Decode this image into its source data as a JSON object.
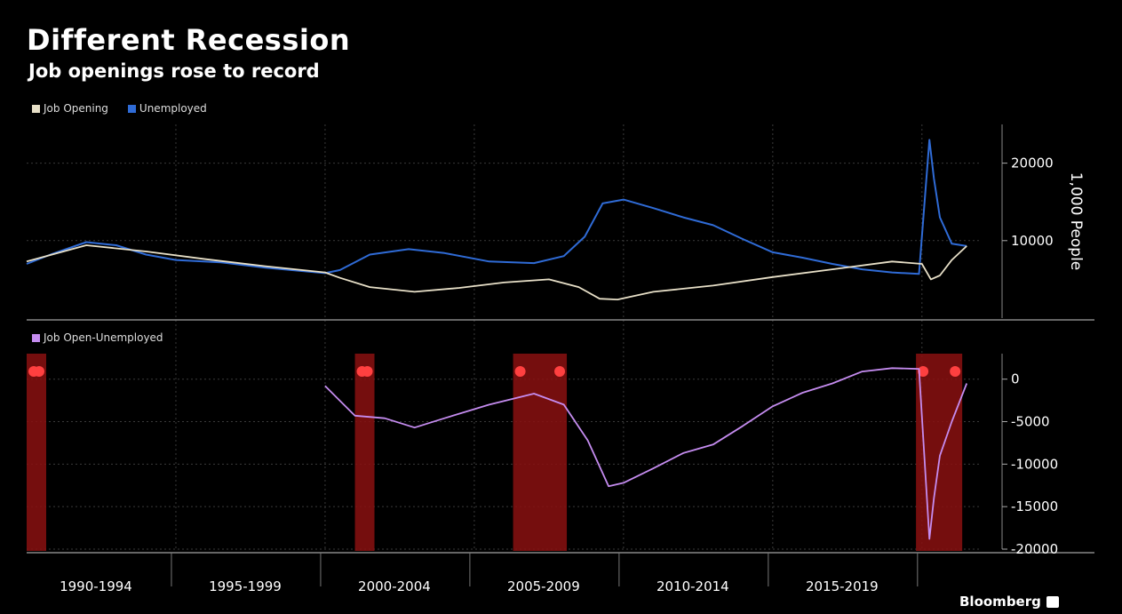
{
  "title": "Different Recession",
  "subtitle": "Job openings rose to record",
  "brand": "Bloomberg",
  "colors": {
    "job_opening": "#e8e0c8",
    "unemployed": "#2f6bd6",
    "diff": "#c58cf0",
    "recession": "#8a1010",
    "recession_marker": "#ff4040",
    "grid": "#3a3a3a"
  },
  "chart_data": [
    {
      "type": "line",
      "panel": "top",
      "ylabel": "1,000 People",
      "ylim": [
        0,
        25000
      ],
      "yticks": [
        10000,
        20000
      ],
      "legend_placement": "top-left",
      "series": [
        {
          "name": "Job Opening",
          "x": [
            1990.0,
            1992.0,
            1994.0,
            1996.0,
            1998.0,
            2000.0,
            2000.5,
            2001.5,
            2003.0,
            2004.5,
            2006.0,
            2007.5,
            2008.5,
            2009.2,
            2009.8,
            2011.0,
            2013.0,
            2015.0,
            2017.0,
            2019.0,
            2020.0,
            2020.3,
            2020.6,
            2021.0,
            2021.5
          ],
          "y": [
            7300,
            9400,
            8600,
            7600,
            6700,
            5900,
            5200,
            4000,
            3400,
            3900,
            4600,
            5000,
            4000,
            2500,
            2400,
            3400,
            4200,
            5300,
            6300,
            7300,
            7000,
            5000,
            5500,
            7500,
            9300
          ]
        },
        {
          "name": "Unemployed",
          "x": [
            1990.0,
            1990.8,
            1992.0,
            1993.0,
            1994.0,
            1995.0,
            1996.5,
            1998.0,
            2000.0,
            2000.5,
            2001.5,
            2002.8,
            2004.0,
            2005.5,
            2007.0,
            2008.0,
            2008.7,
            2009.3,
            2010.0,
            2011.0,
            2012.0,
            2013.0,
            2014.0,
            2015.0,
            2016.0,
            2017.0,
            2018.0,
            2019.0,
            2019.9,
            2020.25,
            2020.4,
            2020.6,
            2021.0,
            2021.5
          ],
          "y": [
            7000,
            8200,
            9800,
            9400,
            8200,
            7500,
            7200,
            6500,
            5800,
            6200,
            8200,
            8900,
            8400,
            7300,
            7100,
            8000,
            10500,
            14800,
            15300,
            14200,
            13000,
            12000,
            10200,
            8500,
            7800,
            7000,
            6300,
            5900,
            5700,
            23000,
            18000,
            13000,
            9600,
            9300
          ]
        }
      ]
    },
    {
      "type": "line",
      "panel": "bottom",
      "ylim": [
        -20000,
        3000
      ],
      "yticks": [
        0,
        -5000,
        -10000,
        -15000,
        -20000
      ],
      "legend_placement": "top-left",
      "series": [
        {
          "name": "Job Open-Unemployed",
          "x": [
            2000.0,
            2001.0,
            2002.0,
            2003.0,
            2004.0,
            2005.5,
            2007.0,
            2008.0,
            2008.8,
            2009.5,
            2010.0,
            2011.0,
            2012.0,
            2013.0,
            2014.0,
            2015.0,
            2016.0,
            2017.0,
            2018.0,
            2019.0,
            2019.9,
            2020.25,
            2020.4,
            2020.6,
            2021.0,
            2021.5
          ],
          "y": [
            -800,
            -4300,
            -4600,
            -5700,
            -4600,
            -3000,
            -1700,
            -3000,
            -7200,
            -12600,
            -12200,
            -10500,
            -8700,
            -7700,
            -5500,
            -3200,
            -1600,
            -500,
            900,
            1300,
            1200,
            -18800,
            -14000,
            -9000,
            -5000,
            -500
          ]
        }
      ],
      "recessions": [
        {
          "start": 1990.0,
          "end": 1990.25
        },
        {
          "start": 2001.0,
          "end": 2001.25
        },
        {
          "start": 2006.3,
          "end": 2008.1
        },
        {
          "start": 2019.8,
          "end": 2021.35
        }
      ]
    }
  ],
  "x_axis": {
    "ticks": [
      "1990-1994",
      "1995-1999",
      "2000-2004",
      "2005-2009",
      "2010-2014",
      "2015-2019"
    ],
    "tick_centers": [
      1992.5,
      1997.5,
      2002.5,
      2007.5,
      2012.5,
      2017.5
    ],
    "xlim": [
      1990.0,
      2022.0
    ]
  }
}
